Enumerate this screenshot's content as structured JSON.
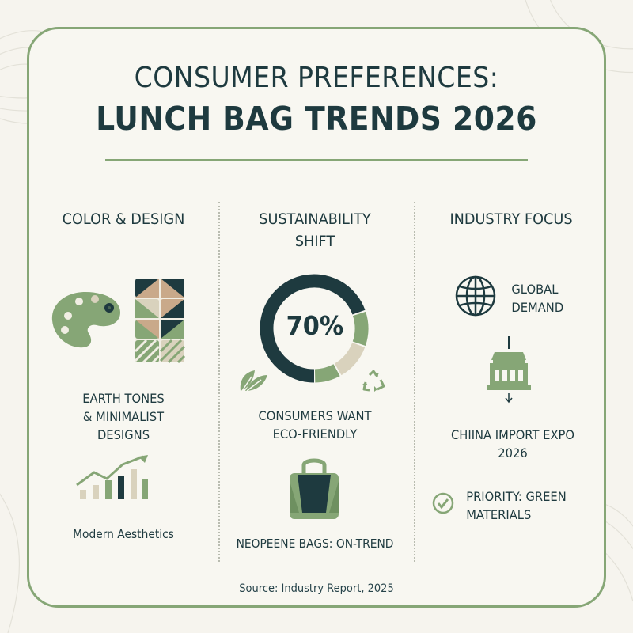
{
  "title": {
    "line1": "CONSUMER PREFERENCES:",
    "line2": "LUNCH BAG TRENDS 2026"
  },
  "columns": {
    "color_design": {
      "heading": "COLOR & DESIGN",
      "caption_lines": [
        "EARTH TONES",
        "& MINIMALIST",
        "DESIGNS"
      ],
      "chart_caption": "Modern Aesthetics"
    },
    "sustainability": {
      "heading_lines": [
        "SUSTAINABILITY",
        "SHIFT"
      ],
      "stat": "70%",
      "stat_value": 70,
      "caption_lines": [
        "CONSUMERS WANT",
        "ECO-FRIENDLY"
      ],
      "bag_caption": "NEOPEENE BAGS: ON-TREND"
    },
    "industry": {
      "heading": "INDUSTRY FOCUS",
      "global_lines": [
        "GLOBAL",
        "DEMAND"
      ],
      "expo_lines": [
        "CHIINA IMPORT EXPO",
        "2026"
      ],
      "priority_lines": [
        "PRIORITY: GREEN",
        "MATERIALS"
      ]
    }
  },
  "source": "Source: Industry Report, 2025",
  "colors": {
    "navy": "#1e3a3f",
    "sage": "#86a676",
    "beige": "#d9d2bd",
    "tan": "#c9a98a",
    "border": "#86a676"
  },
  "icons": {
    "palette": "palette-icon",
    "pattern": "pattern-tile-icon",
    "growth": "growth-chart-icon",
    "leaf": "leaf-icon",
    "recycle": "recycle-icon",
    "bag": "lunch-bag-icon",
    "globe": "globe-icon",
    "building": "expo-building-icon",
    "check": "check-circle-icon"
  }
}
